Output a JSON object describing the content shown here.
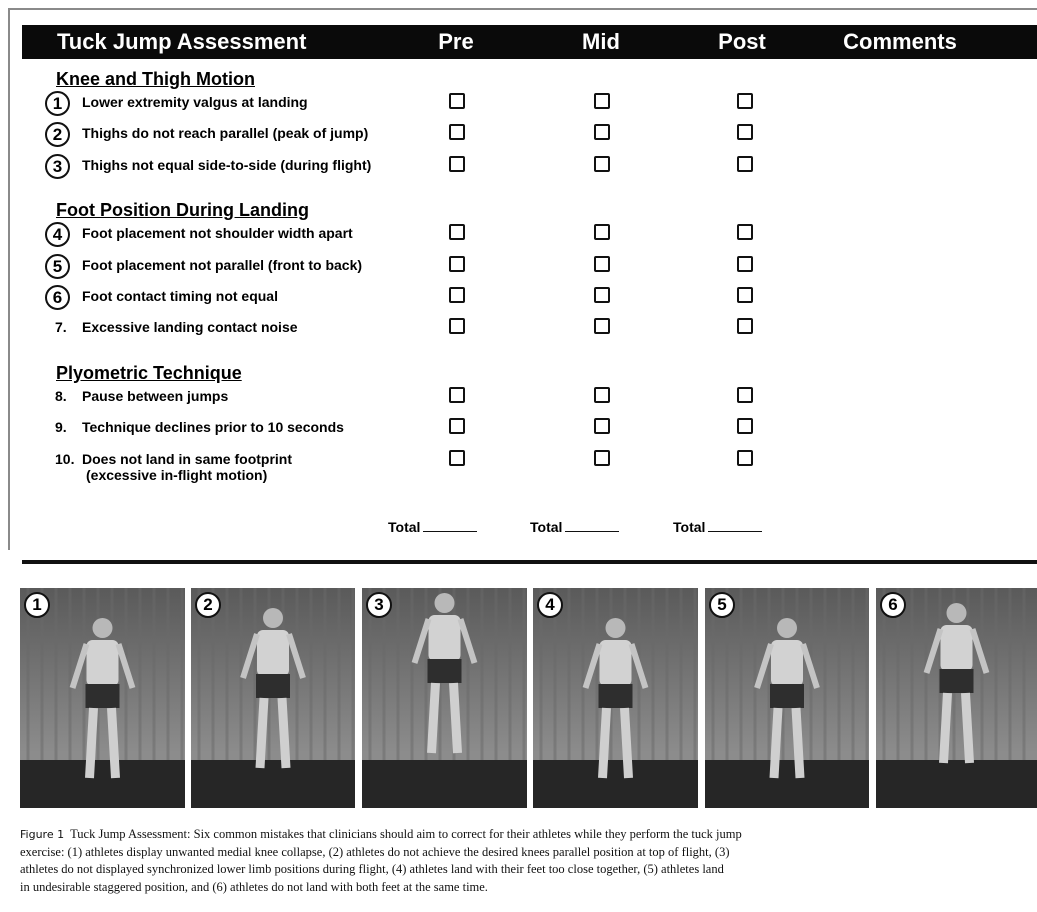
{
  "header": {
    "title": "Tuck Jump Assessment",
    "columns": [
      "Pre",
      "Mid",
      "Post",
      "Comments"
    ]
  },
  "sections": [
    {
      "title": "Knee and Thigh Motion",
      "items": [
        {
          "number": "1",
          "text": "Lower extremity valgus at landing"
        },
        {
          "number": "2",
          "text": "Thighs do not reach parallel (peak of jump)"
        },
        {
          "number": "3",
          "text": "Thighs not equal side-to-side (during flight)"
        }
      ]
    },
    {
      "title": "Foot Position During Landing",
      "items": [
        {
          "number": "4",
          "text": "Foot placement not shoulder width apart"
        },
        {
          "number": "5",
          "text": "Foot placement not parallel (front to back)"
        },
        {
          "number": "6",
          "text": "Foot contact timing not equal"
        },
        {
          "number": "7.",
          "text": "Excessive landing contact noise"
        }
      ]
    },
    {
      "title": "Plyometric Technique",
      "items": [
        {
          "number": "8.",
          "text": "Pause between jumps"
        },
        {
          "number": "9.",
          "text": "Technique declines prior to 10 seconds"
        },
        {
          "number": "10.",
          "text": "Does not land in same footprint",
          "note": "(excessive in-flight motion)"
        }
      ]
    }
  ],
  "totals": [
    "Total",
    "Total",
    "Total"
  ],
  "photos": [
    "1",
    "2",
    "3",
    "4",
    "5",
    "6"
  ],
  "caption": {
    "label": "Figure 1",
    "lines": [
      "Tuck Jump Assessment: Six common mistakes that clinicians should aim to correct for their athletes while they perform the tuck jump",
      "exercise: (1) athletes display unwanted medial knee collapse, (2) athletes do not achieve the desired knees parallel position at top of flight, (3)",
      "athletes do not displayed synchronized lower limb positions during flight, (4) athletes land with their feet too close together, (5) athletes land",
      "in undesirable staggered position, and (6) athletes do not land with both feet at the same time."
    ]
  }
}
